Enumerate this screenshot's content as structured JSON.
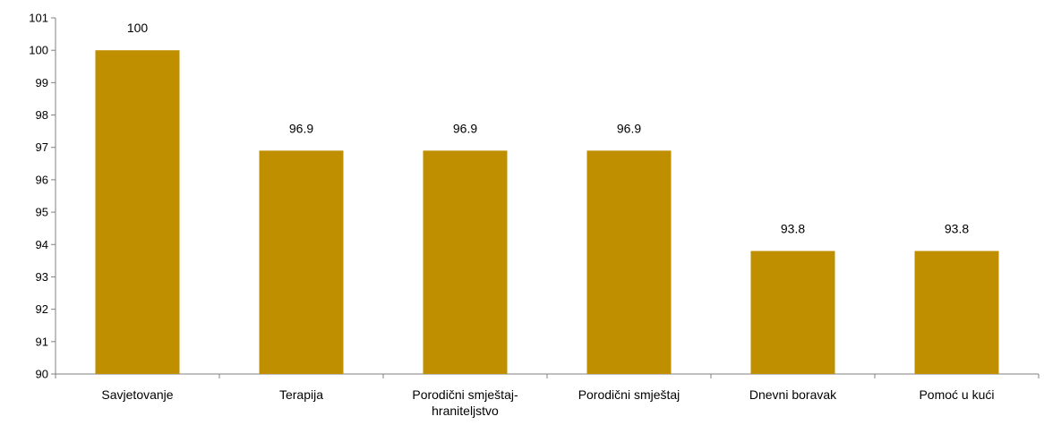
{
  "chart_data": {
    "type": "bar",
    "title": "",
    "xlabel": "",
    "ylabel": "",
    "categories": [
      [
        "Savjetovanje"
      ],
      [
        "Terapija"
      ],
      [
        "Porodični smještaj-",
        "hraniteljstvo"
      ],
      [
        "Porodični smještaj"
      ],
      [
        "Dnevni boravak"
      ],
      [
        "Pomoć u kući"
      ]
    ],
    "values": [
      100,
      96.9,
      96.9,
      96.9,
      93.8,
      93.8
    ],
    "value_labels": [
      "100",
      "96.9",
      "96.9",
      "96.9",
      "93.8",
      "93.8"
    ],
    "ylim": [
      90,
      101
    ],
    "yticks": [
      90,
      91,
      92,
      93,
      94,
      95,
      96,
      97,
      98,
      99,
      100,
      101
    ],
    "grid": false,
    "legend": "none",
    "bar_color": "#BF8F00",
    "axis_color": "#808080"
  }
}
